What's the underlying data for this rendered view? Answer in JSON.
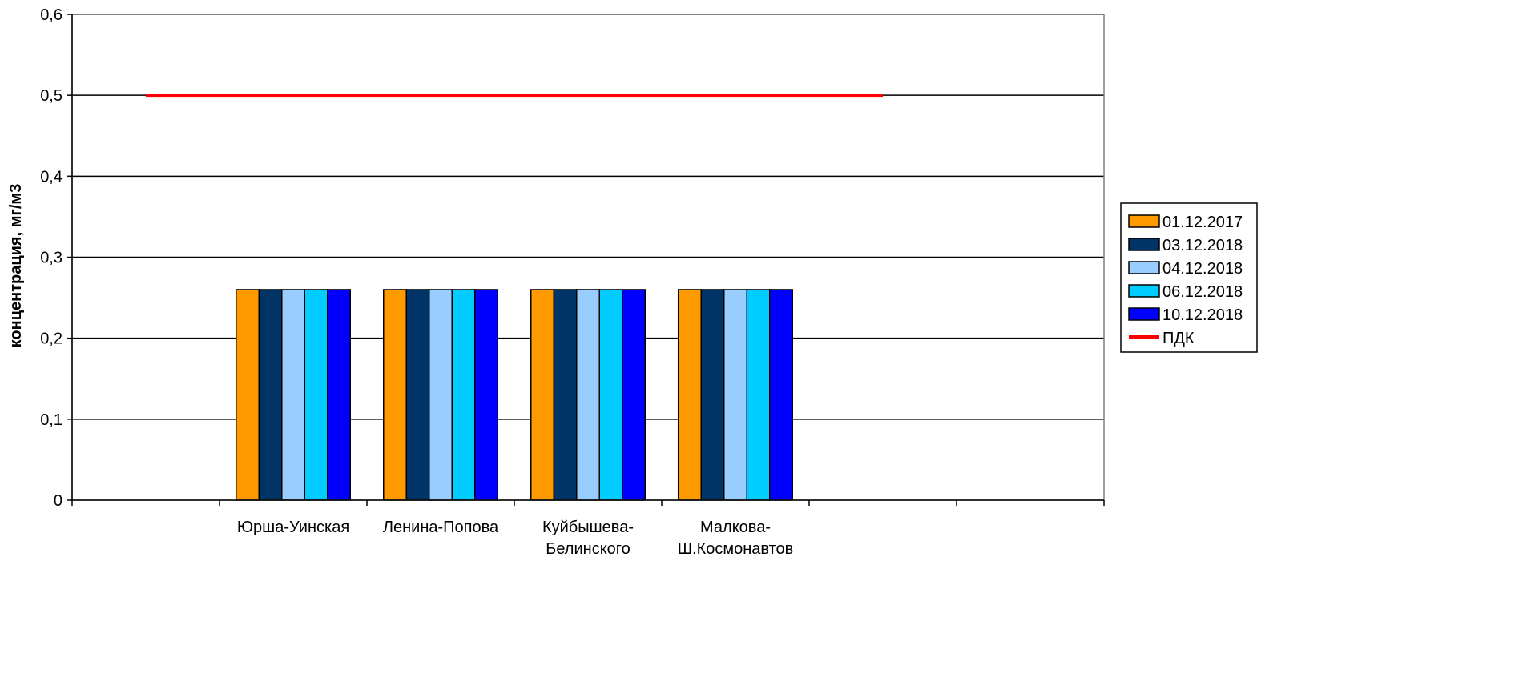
{
  "chart_data": {
    "type": "bar",
    "categories": [
      "",
      "Юрша-Уинская",
      "Ленина-Попова",
      "Куйбышева-Белинского",
      "Малкова-Ш.Космонавтов",
      "",
      ""
    ],
    "category_lines": [
      [],
      [
        "Юрша-Уинская"
      ],
      [
        "Ленина-Попова"
      ],
      [
        "Куйбышева-",
        "Белинского"
      ],
      [
        "Малкова-",
        "Ш.Космонавтов"
      ],
      [],
      []
    ],
    "series": [
      {
        "name": "01.12.2017",
        "color": "#FF9900",
        "values": [
          null,
          0.26,
          0.26,
          0.26,
          0.26,
          null,
          null
        ]
      },
      {
        "name": "03.12.2018",
        "color": "#003366",
        "values": [
          null,
          0.26,
          0.26,
          0.26,
          0.26,
          null,
          null
        ]
      },
      {
        "name": "04.12.2018",
        "color": "#99CCFF",
        "values": [
          null,
          0.26,
          0.26,
          0.26,
          0.26,
          null,
          null
        ]
      },
      {
        "name": "06.12.2018",
        "color": "#00CCFF",
        "values": [
          null,
          0.26,
          0.26,
          0.26,
          0.26,
          null,
          null
        ]
      },
      {
        "name": "10.12.2018",
        "color": "#0000FF",
        "values": [
          null,
          0.26,
          0.26,
          0.26,
          0.26,
          null,
          null
        ]
      }
    ],
    "line_series": {
      "name": "ПДК",
      "color": "#FF0000",
      "value": 0.5,
      "from_index": 0,
      "to_index": 5
    },
    "title": "",
    "xlabel": "",
    "ylabel": "концентрация, мг/м3",
    "ylim": [
      0,
      0.6
    ],
    "yticks": [
      0,
      0.1,
      0.2,
      0.3,
      0.4,
      0.5,
      0.6
    ],
    "ytick_labels": [
      "0",
      "0,1",
      "0,2",
      "0,3",
      "0,4",
      "0,5",
      "0,6"
    ],
    "grid": true,
    "legend": "right"
  }
}
